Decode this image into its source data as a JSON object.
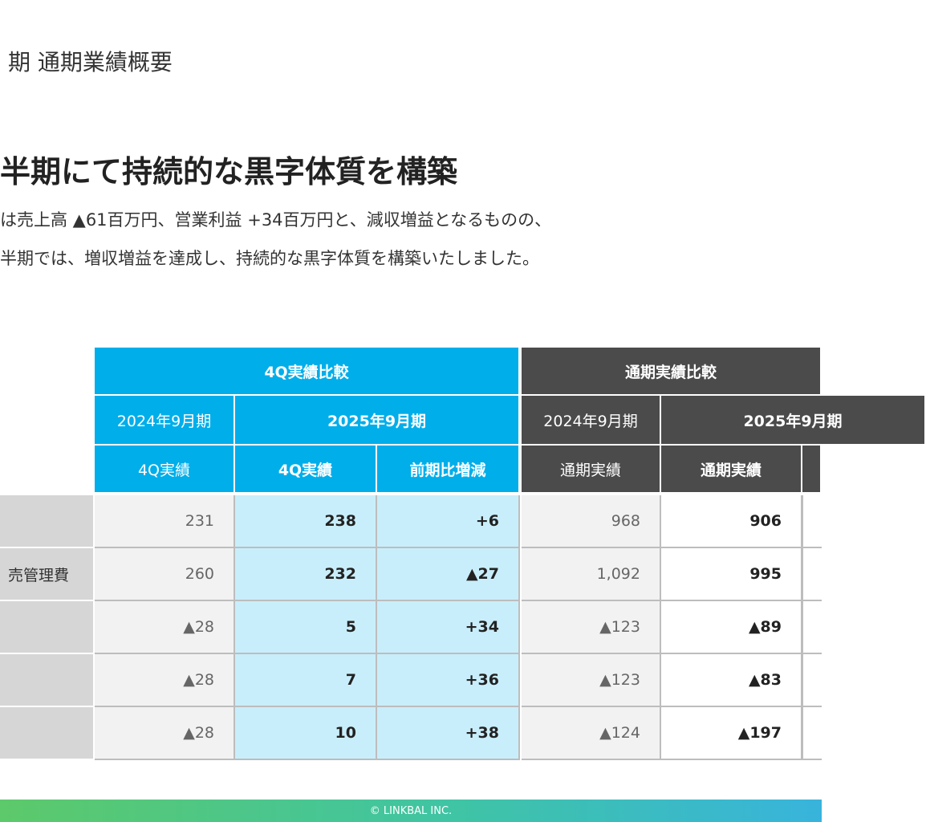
{
  "header": {
    "section": "期 通期業績概要"
  },
  "headline": "半期にて持続的な黒字体質を構築",
  "body": [
    "は売上高 ▲61百万円、営業利益 +34百万円と、減収増益となるものの、",
    "半期では、増収増益を達成し、持続的な黒字体質を構築いたしました。"
  ],
  "table": {
    "groups": [
      "4Q実績比較",
      "通期実績比較"
    ],
    "periods": [
      "2024年9月期",
      "2025年9月期",
      "2024年9月期",
      "2025年9月期"
    ],
    "columns": [
      "4Q実績",
      "4Q実績",
      "前期比増減",
      "通期実績",
      "通期実績"
    ],
    "rows": [
      {
        "cells": [
          "231",
          "238",
          "+6",
          "968",
          "906"
        ]
      },
      {
        "label": "売管理費",
        "cells": [
          "260",
          "232",
          "▲27",
          "1,092",
          "995"
        ]
      },
      {
        "cells": [
          "▲28",
          "5",
          "+34",
          "▲123",
          "▲89"
        ]
      },
      {
        "cells": [
          "▲28",
          "7",
          "+36",
          "▲123",
          "▲83"
        ]
      },
      {
        "cells": [
          "▲28",
          "10",
          "+38",
          "▲124",
          "▲197"
        ]
      }
    ]
  },
  "footer": "© LINKBAL INC."
}
